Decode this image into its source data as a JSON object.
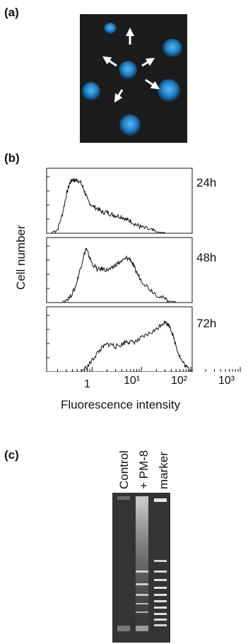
{
  "panels": {
    "a": {
      "label": "(a)"
    },
    "b": {
      "label": "(b)"
    },
    "c": {
      "label": "(c)"
    }
  },
  "chart_data": {
    "type": "line",
    "xlabel": "Fluorescence intensity",
    "ylabel": "Cell number",
    "x_scale": "log",
    "x_ticks": [
      {
        "value": 1,
        "label": "1"
      },
      {
        "value": 10,
        "label": "10¹"
      },
      {
        "value": 100,
        "label": "10²"
      },
      {
        "value": 1000,
        "label": "10³"
      }
    ],
    "xlim": [
      0.12,
      1000
    ],
    "histograms": [
      {
        "name": "24h",
        "points": [
          [
            0.15,
            0
          ],
          [
            0.2,
            0.06
          ],
          [
            0.25,
            0.35
          ],
          [
            0.3,
            0.7
          ],
          [
            0.35,
            0.92
          ],
          [
            0.4,
            1.0
          ],
          [
            0.45,
            0.97
          ],
          [
            0.5,
            1.0
          ],
          [
            0.6,
            0.92
          ],
          [
            0.7,
            0.78
          ],
          [
            0.8,
            0.62
          ],
          [
            1.0,
            0.5
          ],
          [
            1.3,
            0.45
          ],
          [
            1.6,
            0.38
          ],
          [
            2.0,
            0.38
          ],
          [
            2.5,
            0.34
          ],
          [
            3,
            0.32
          ],
          [
            4,
            0.3
          ],
          [
            5,
            0.24
          ],
          [
            6,
            0.22
          ],
          [
            8,
            0.14
          ],
          [
            10,
            0.1
          ],
          [
            15,
            0.05
          ],
          [
            20,
            0.01
          ],
          [
            30,
            0
          ]
        ]
      },
      {
        "name": "48h",
        "points": [
          [
            0.25,
            0
          ],
          [
            0.35,
            0.08
          ],
          [
            0.45,
            0.25
          ],
          [
            0.55,
            0.55
          ],
          [
            0.65,
            0.8
          ],
          [
            0.75,
            1.0
          ],
          [
            0.85,
            0.88
          ],
          [
            1.0,
            0.72
          ],
          [
            1.3,
            0.6
          ],
          [
            1.6,
            0.62
          ],
          [
            2.0,
            0.6
          ],
          [
            2.5,
            0.62
          ],
          [
            3,
            0.7
          ],
          [
            4,
            0.76
          ],
          [
            5,
            0.82
          ],
          [
            6,
            0.8
          ],
          [
            7,
            0.66
          ],
          [
            8,
            0.55
          ],
          [
            10,
            0.4
          ],
          [
            14,
            0.26
          ],
          [
            20,
            0.14
          ],
          [
            30,
            0.05
          ],
          [
            40,
            0.01
          ],
          [
            50,
            0
          ]
        ]
      },
      {
        "name": "72h",
        "points": [
          [
            0.6,
            0
          ],
          [
            0.8,
            0.08
          ],
          [
            1.0,
            0.2
          ],
          [
            1.3,
            0.35
          ],
          [
            1.6,
            0.44
          ],
          [
            2,
            0.5
          ],
          [
            2.5,
            0.5
          ],
          [
            3,
            0.46
          ],
          [
            4,
            0.5
          ],
          [
            5,
            0.56
          ],
          [
            6,
            0.54
          ],
          [
            8,
            0.56
          ],
          [
            10,
            0.62
          ],
          [
            14,
            0.7
          ],
          [
            20,
            0.78
          ],
          [
            25,
            0.88
          ],
          [
            30,
            0.92
          ],
          [
            38,
            0.84
          ],
          [
            45,
            0.62
          ],
          [
            55,
            0.36
          ],
          [
            65,
            0.2
          ],
          [
            80,
            0.08
          ],
          [
            100,
            0.01
          ],
          [
            110,
            0
          ]
        ]
      }
    ]
  },
  "gel": {
    "lanes": [
      "Control",
      "+ PM-8",
      "marker"
    ]
  }
}
